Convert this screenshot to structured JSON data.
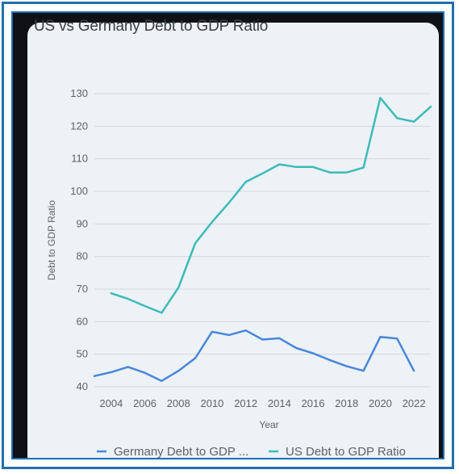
{
  "chart_data": {
    "type": "line",
    "title": "US vs Germany Debt to GDP Ratio",
    "xlabel": "Year",
    "ylabel": "Debt to GDP Ratio",
    "ylim": [
      40,
      130
    ],
    "xlim": [
      2003,
      2023
    ],
    "grid": true,
    "legend_position": "bottom",
    "y_ticks": [
      40,
      50,
      60,
      70,
      80,
      90,
      100,
      110,
      120,
      130
    ],
    "x_ticks": [
      2004,
      2006,
      2008,
      2010,
      2012,
      2014,
      2016,
      2018,
      2020,
      2022
    ],
    "series": [
      {
        "name": "Germany Debt to GDP ...",
        "color": "#4a86d8",
        "x": [
          2003,
          2004,
          2005,
          2006,
          2007,
          2008,
          2009,
          2010,
          2011,
          2012,
          2013,
          2014,
          2015,
          2016,
          2017,
          2018,
          2019,
          2020,
          2021,
          2022
        ],
        "values": [
          43.3,
          44.5,
          46.1,
          44.3,
          41.8,
          44.9,
          48.8,
          56.9,
          55.9,
          57.3,
          54.5,
          54.9,
          51.9,
          50.3,
          48.2,
          46.3,
          44.9,
          55.3,
          54.8,
          44.9
        ]
      },
      {
        "name": "US Debt to GDP Ratio",
        "color": "#3dbbb6",
        "x": [
          2004,
          2005,
          2006,
          2007,
          2008,
          2009,
          2010,
          2011,
          2012,
          2013,
          2014,
          2015,
          2016,
          2017,
          2018,
          2019,
          2020,
          2021,
          2022,
          2023
        ],
        "values": [
          68.7,
          67.0,
          64.8,
          62.7,
          70.5,
          84.1,
          90.6,
          96.5,
          102.9,
          105.5,
          108.3,
          107.5,
          107.5,
          105.8,
          105.8,
          107.3,
          128.7,
          122.5,
          121.4,
          126.0
        ]
      }
    ]
  }
}
